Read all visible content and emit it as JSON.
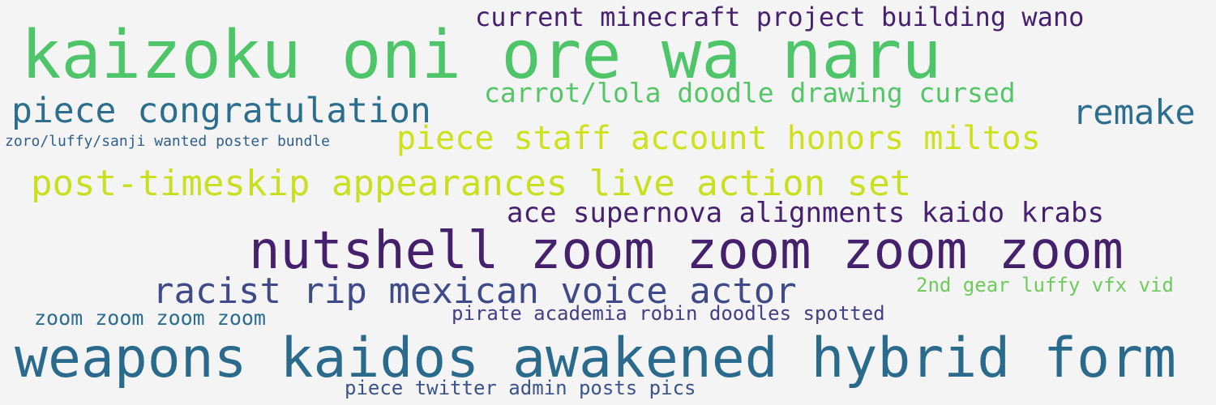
{
  "words": {
    "w1": {
      "text": "kaizoku oni ore wa naru",
      "color": "#4fc56a"
    },
    "w2": {
      "text": "current minecraft project building wano",
      "color": "#46226e"
    },
    "w3": {
      "text": "carrot/lola doodle drawing cursed",
      "color": "#55c668"
    },
    "w4": {
      "text": "piece congratulation",
      "color": "#2c6e8e"
    },
    "w5": {
      "text": "remake",
      "color": "#2c6e8e"
    },
    "w6": {
      "text": "zoro/luffy/sanji wanted poster bundle",
      "color": "#2f5f8a"
    },
    "w7": {
      "text": "piece staff account honors miltos",
      "color": "#cde11d"
    },
    "w8": {
      "text": "post-timeskip appearances live action set",
      "color": "#c8e020"
    },
    "w9": {
      "text": "ace supernova alignments kaido krabs",
      "color": "#45216f"
    },
    "w10": {
      "text": "nutshell zoom zoom zoom zoom",
      "color": "#45206c"
    },
    "w11": {
      "text": "racist rip mexican voice actor",
      "color": "#3e4a89"
    },
    "w12": {
      "text": "2nd gear luffy vfx vid",
      "color": "#6ecb5b"
    },
    "w13": {
      "text": "zoom zoom zoom zoom",
      "color": "#2b6d8e"
    },
    "w14": {
      "text": "pirate academia robin doodles spotted",
      "color": "#433e85"
    },
    "w15": {
      "text": "weapons kaidos awakened hybrid form",
      "color": "#2a6a8c"
    },
    "w16": {
      "text": "piece twitter admin posts pics",
      "color": "#3a538b"
    }
  }
}
